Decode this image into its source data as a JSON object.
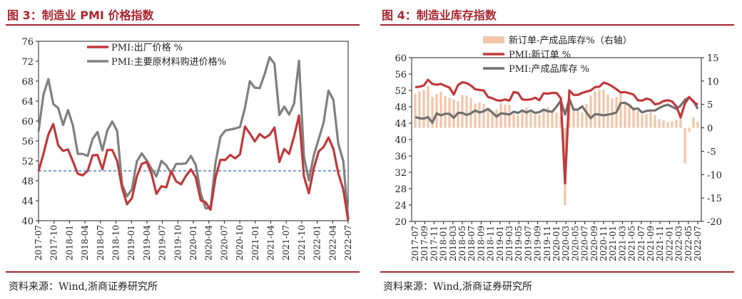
{
  "charts": [
    {
      "title": "图 3：制造业 PMI 价格指数",
      "source": "资料来源：Wind,浙商证券研究所",
      "chart_data": {
        "type": "line",
        "ylim": [
          40,
          76
        ],
        "yticks": [
          40,
          44,
          48,
          52,
          56,
          60,
          64,
          68,
          72,
          76
        ],
        "xtick_labels": [
          "2017-07",
          "2017-10",
          "2018-01",
          "2018-04",
          "2018-07",
          "2018-10",
          "2019-01",
          "2019-04",
          "2019-07",
          "2019-10",
          "2020-01",
          "2020-04",
          "2020-07",
          "2020-10",
          "2021-01",
          "2021-04",
          "2021-07",
          "2021-10",
          "2022-01",
          "2022-04",
          "2022-07"
        ],
        "reference_line": 50,
        "legend": "top-center",
        "series": [
          {
            "name": "PMI:出厂价格 %",
            "color": "#c0393b",
            "values": [
              49.9,
              53.4,
              57.3,
              59.4,
              55.1,
              54.0,
              54.3,
              51.9,
              49.4,
              49.1,
              50.0,
              53.1,
              53.2,
              50.3,
              54.2,
              54.2,
              52.0,
              46.6,
              43.3,
              44.5,
              48.9,
              51.4,
              51.8,
              49.4,
              45.4,
              46.9,
              46.7,
              49.9,
              47.9,
              47.3,
              49.0,
              50.3,
              48.7,
              44.1,
              43.7,
              42.2,
              48.6,
              52.2,
              52.2,
              53.2,
              52.5,
              53.3,
              58.9,
              57.5,
              55.9,
              57.4,
              56.6,
              57.2,
              58.7,
              51.8,
              54.4,
              53.4,
              56.9,
              61.1,
              48.9,
              45.5,
              50.5,
              53.9,
              54.8,
              56.7,
              54.4,
              49.5,
              46.3,
              40.1
            ]
          },
          {
            "name": "PMI:主要原材料购进价格%",
            "color": "#808080",
            "values": [
              57.9,
              65.3,
              68.4,
              63.4,
              62.6,
              59.2,
              62.2,
              59.1,
              53.4,
              53.4,
              53.0,
              56.4,
              57.8,
              54.1,
              58.1,
              59.9,
              58.0,
              47.3,
              44.9,
              46.3,
              51.9,
              53.5,
              52.1,
              50.4,
              48.9,
              52.0,
              51.1,
              49.5,
              51.4,
              51.4,
              51.5,
              53.0,
              51.2,
              45.5,
              42.5,
              42.5,
              51.6,
              56.8,
              58.1,
              58.3,
              58.5,
              58.8,
              62.6,
              68.0,
              66.7,
              66.6,
              69.4,
              72.8,
              71.5,
              61.2,
              62.9,
              61.3,
              63.5,
              72.1,
              52.9,
              48.1,
              53.1,
              56.4,
              59.7,
              66.1,
              64.2,
              55.4,
              52.0,
              40.4
            ]
          }
        ]
      }
    },
    {
      "title": "图 4：制造业库存指数",
      "source": "资料来源：Wind,浙商证券研究所",
      "chart_data": {
        "type": "line",
        "ylim_left": [
          20,
          60
        ],
        "yticks_left": [
          20,
          24,
          28,
          32,
          36,
          40,
          44,
          48,
          52,
          56,
          60
        ],
        "ylim_right": [
          -20,
          15
        ],
        "yticks_right": [
          -20,
          -15,
          -10,
          -5,
          0,
          5,
          10,
          15
        ],
        "xtick_labels": [
          "2017-07",
          "2017-09",
          "2017-11",
          "2018-01",
          "2018-03",
          "2018-05",
          "2018-07",
          "2018-09",
          "2018-11",
          "2019-01",
          "2019-03",
          "2019-05",
          "2019-07",
          "2019-09",
          "2019-11",
          "2020-01",
          "2020-03",
          "2020-05",
          "2020-07",
          "2020-09",
          "2020-11",
          "2021-01",
          "2021-03",
          "2021-05",
          "2021-07",
          "2021-09",
          "2021-11",
          "2022-01",
          "2022-03",
          "2022-05",
          "2022-07"
        ],
        "legend": "top-left",
        "series": [
          {
            "name": "新订单-产成品库存%（右轴）",
            "type": "bar",
            "axis": "right",
            "color": "#f2c6aa",
            "values": [
              7.3,
              7.8,
              8.1,
              9.0,
              6.6,
              7.2,
              7.7,
              6.8,
              6.4,
              6.1,
              5.7,
              7.0,
              6.9,
              6.4,
              5.2,
              5.5,
              5.1,
              4.3,
              3.5,
              4.0,
              5.3,
              5.0,
              4.9,
              2.9,
              2.7,
              3.9,
              4.4,
              3.3,
              2.9,
              2.8,
              4.0,
              4.4,
              3.7,
              3.3,
              2.6,
              -16.5,
              6.1,
              3.6,
              3.6,
              3.3,
              5.1,
              6.9,
              7.8,
              8.2,
              8.1,
              7.1,
              6.3,
              6.6,
              7.7,
              5.4,
              4.7,
              4.4,
              3.6,
              2.8,
              3.0,
              3.4,
              2.7,
              1.9,
              1.6,
              1.2,
              1.4,
              1.7,
              3.2,
              -7.6,
              -0.9,
              2.3,
              1.3
            ]
          },
          {
            "name": "PMI:新订单 %",
            "type": "line",
            "axis": "left",
            "color": "#c0393b",
            "values": [
              52.8,
              52.9,
              53.2,
              54.6,
              53.6,
              53.4,
              53.6,
              53.1,
              52.7,
              51.0,
              53.3,
              54.0,
              53.8,
              53.2,
              52.3,
              52.1,
              52.0,
              50.4,
              50.1,
              49.6,
              49.5,
              49.8,
              49.5,
              51.6,
              51.4,
              49.8,
              49.7,
              49.8,
              50.2,
              49.6,
              51.3,
              51.2,
              51.4,
              51.4,
              50.1,
              29.3,
              52.0,
              50.9,
              50.9,
              51.4,
              51.7,
              52.0,
              52.8,
              52.9,
              53.9,
              53.6,
              53.0,
              52.3,
              51.5,
              51.6,
              51.3,
              51.0,
              49.6,
              49.5,
              50.0,
              49.7,
              48.6,
              48.8,
              49.4,
              49.6,
              49.3,
              48.1,
              45.4,
              48.8,
              50.4,
              49.2,
              48.5
            ]
          },
          {
            "name": "PMI:产成品库存 %",
            "type": "line",
            "axis": "left",
            "color": "#707070",
            "values": [
              45.5,
              45.2,
              45.1,
              45.5,
              44.1,
              46.4,
              45.9,
              46.3,
              46.3,
              45.3,
              46.5,
              46.5,
              46.0,
              46.4,
              47.1,
              46.6,
              46.9,
              47.5,
              46.6,
              45.6,
              46.4,
              46.3,
              46.1,
              46.8,
              46.5,
              47.1,
              46.6,
              47.1,
              46.5,
              46.7,
              47.3,
              46.9,
              46.8,
              48.0,
              49.5,
              46.1,
              49.9,
              47.3,
              47.3,
              48.1,
              46.6,
              45.2,
              46.2,
              46.1,
              45.9,
              46.1,
              46.3,
              46.6,
              48.9,
              49.0,
              48.4,
              47.4,
              47.6,
              46.6,
              47.0,
              47.1,
              47.1,
              47.7,
              48.2,
              48.5,
              48.0,
              47.5,
              48.3,
              49.7,
              50.3,
              49.4,
              47.5
            ]
          }
        ]
      }
    }
  ]
}
